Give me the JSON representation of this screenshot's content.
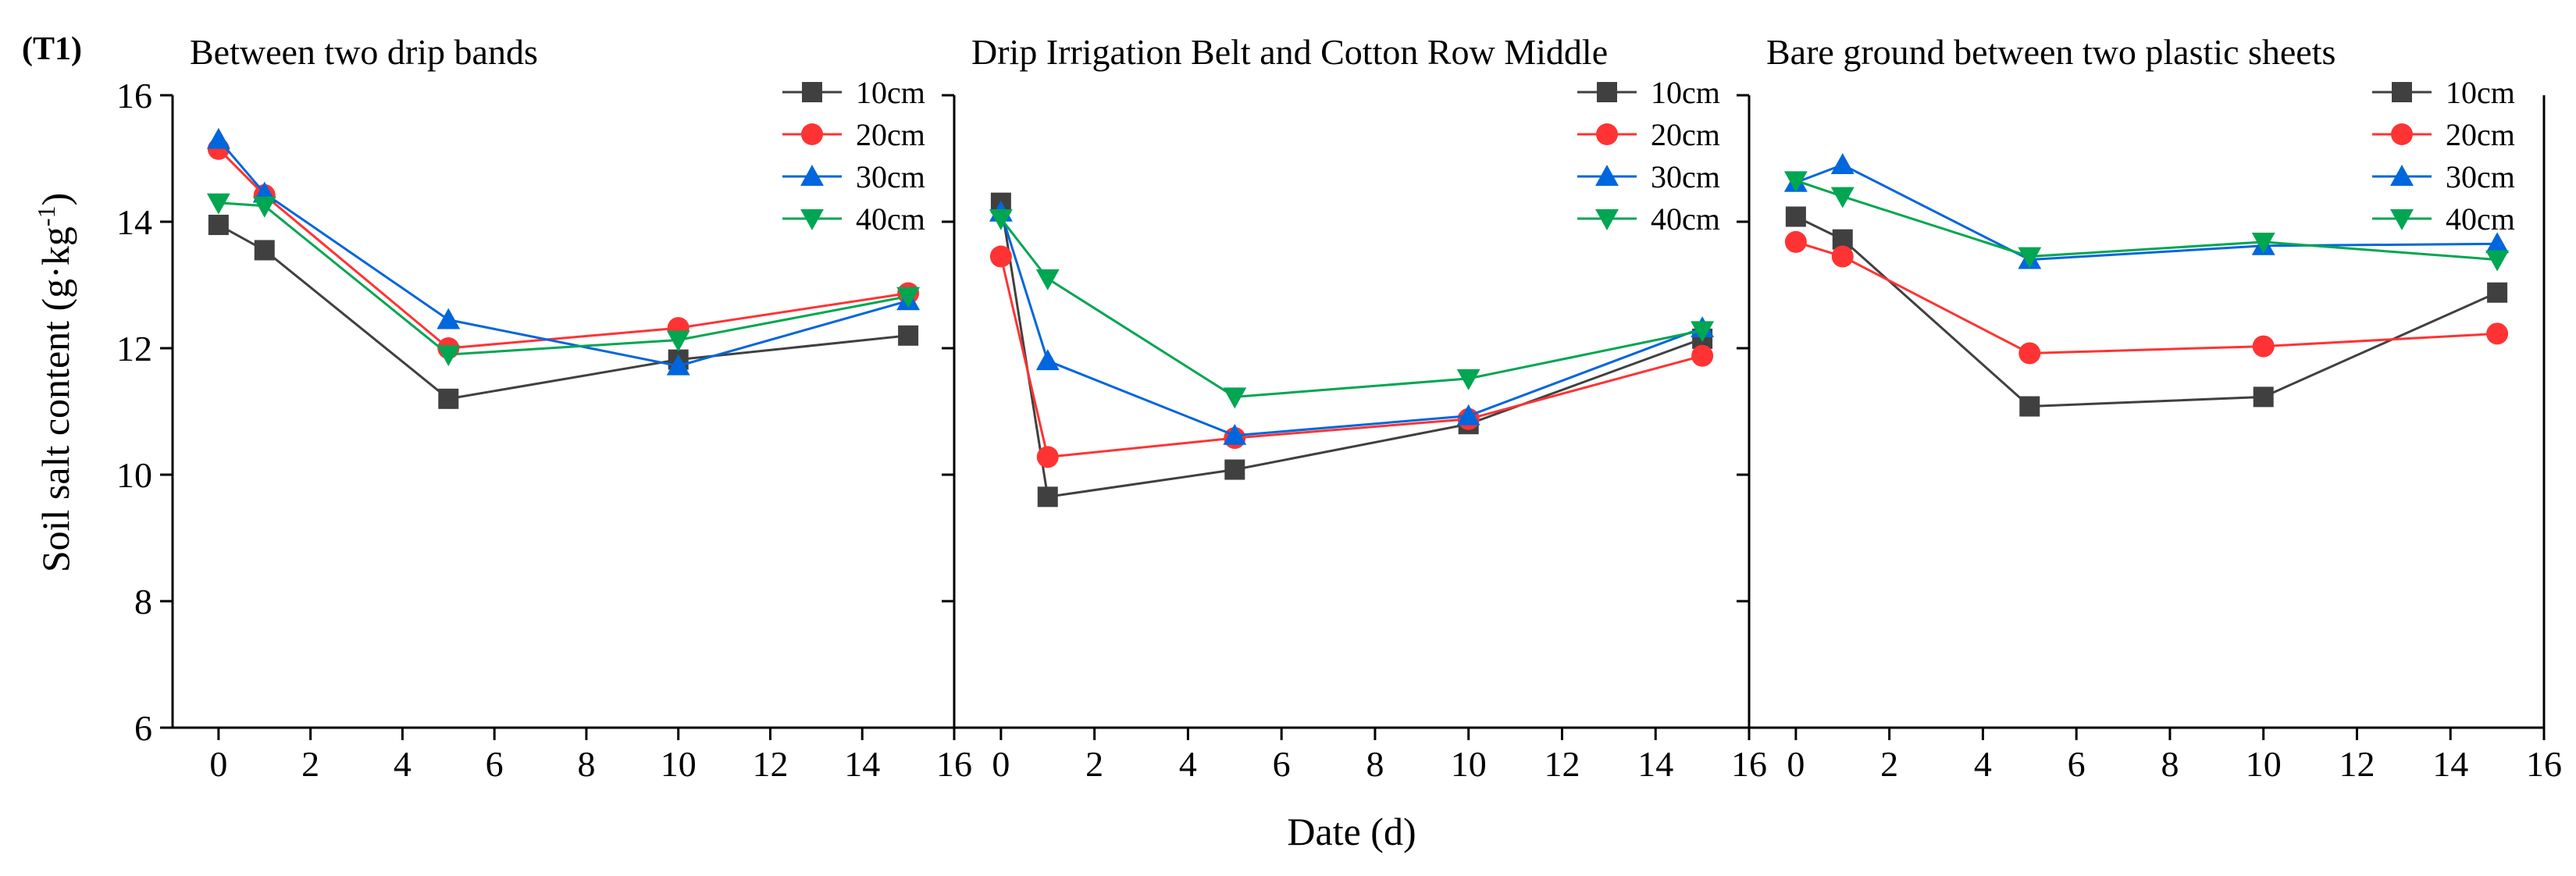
{
  "figure_tag": "(T1)",
  "xlabel": "Date (d)",
  "ylabel": "Soil salt content (g·kg",
  "ylabel_sup": "-1",
  "ylabel_end": ")",
  "colors": {
    "10cm": "#404040",
    "20cm": "#ff3333",
    "30cm": "#0066dd",
    "40cm": "#00a651"
  },
  "chart_data": [
    {
      "type": "line",
      "title": "Between two drip bands",
      "xlabel": "Date (d)",
      "ylabel": "Soil salt content (g·kg-1)",
      "xlim": [
        -1,
        16
      ],
      "ylim": [
        6,
        16
      ],
      "x": [
        0,
        1,
        5,
        10,
        15
      ],
      "x_ticks": [
        0,
        2,
        4,
        6,
        8,
        10,
        12,
        14,
        16
      ],
      "y_ticks": [
        6,
        8,
        10,
        12,
        14,
        16
      ],
      "legend_position": "top-right",
      "series": [
        {
          "name": "10cm",
          "marker": "square",
          "values": [
            13.95,
            13.55,
            11.2,
            11.82,
            12.2
          ]
        },
        {
          "name": "20cm",
          "marker": "circle",
          "values": [
            15.15,
            14.42,
            12.0,
            12.32,
            12.87
          ]
        },
        {
          "name": "30cm",
          "marker": "triangle-up",
          "values": [
            15.3,
            14.45,
            12.45,
            11.72,
            12.75
          ]
        },
        {
          "name": "40cm",
          "marker": "triangle-down",
          "values": [
            14.3,
            14.25,
            11.9,
            12.13,
            12.82
          ]
        }
      ]
    },
    {
      "type": "line",
      "title": "Drip Irrigation Belt and Cotton Row Middle",
      "xlabel": "Date (d)",
      "ylabel": "Soil salt content (g·kg-1)",
      "xlim": [
        -1,
        16
      ],
      "ylim": [
        6,
        16
      ],
      "x": [
        0,
        1,
        5,
        10,
        15
      ],
      "x_ticks": [
        0,
        2,
        4,
        6,
        8,
        10,
        12,
        14,
        16
      ],
      "y_ticks": [
        6,
        8,
        10,
        12,
        14,
        16
      ],
      "legend_position": "top-right",
      "series": [
        {
          "name": "10cm",
          "marker": "square",
          "values": [
            14.3,
            9.65,
            10.08,
            10.8,
            12.15
          ]
        },
        {
          "name": "20cm",
          "marker": "circle",
          "values": [
            13.45,
            10.28,
            10.58,
            10.88,
            11.88
          ]
        },
        {
          "name": "30cm",
          "marker": "triangle-up",
          "values": [
            14.15,
            11.8,
            10.62,
            10.93,
            12.32
          ]
        },
        {
          "name": "40cm",
          "marker": "triangle-down",
          "values": [
            14.05,
            13.1,
            11.23,
            11.52,
            12.28
          ]
        }
      ]
    },
    {
      "type": "line",
      "title": "Bare ground between two plastic sheets",
      "xlabel": "Date (d)",
      "ylabel": "Soil salt content (g·kg-1)",
      "xlim": [
        -1,
        16
      ],
      "ylim": [
        6,
        16
      ],
      "x": [
        0,
        1,
        5,
        10,
        15
      ],
      "x_ticks": [
        0,
        2,
        4,
        6,
        8,
        10,
        12,
        14,
        16
      ],
      "y_ticks": [
        6,
        8,
        10,
        12,
        14,
        16
      ],
      "legend_position": "top-right",
      "series": [
        {
          "name": "10cm",
          "marker": "square",
          "values": [
            14.08,
            13.72,
            11.08,
            11.23,
            12.88
          ]
        },
        {
          "name": "20cm",
          "marker": "circle",
          "values": [
            13.68,
            13.45,
            11.92,
            12.03,
            12.23
          ]
        },
        {
          "name": "30cm",
          "marker": "triangle-up",
          "values": [
            14.62,
            14.9,
            13.4,
            13.62,
            13.65
          ]
        },
        {
          "name": "40cm",
          "marker": "triangle-down",
          "values": [
            14.65,
            14.4,
            13.45,
            13.68,
            13.4
          ]
        }
      ]
    }
  ]
}
